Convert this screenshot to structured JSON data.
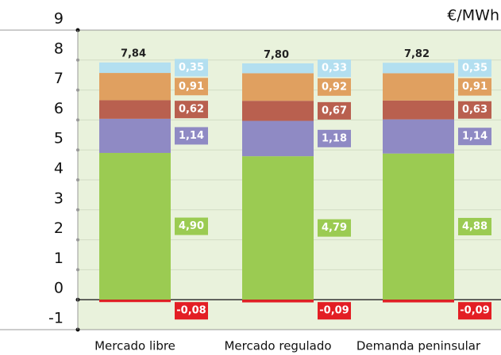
{
  "chart_data": {
    "type": "stacked_bar",
    "unit": "€/MWh",
    "categories": [
      "Mercado libre",
      "Mercado regulado",
      "Demanda peninsular"
    ],
    "series": [
      {
        "color": "#9bcb52",
        "values": [
          4.9,
          4.79,
          4.88
        ],
        "value_labels": [
          "4,90",
          "4,79",
          "4,88"
        ]
      },
      {
        "color": "#8f8ac4",
        "values": [
          1.14,
          1.18,
          1.14
        ],
        "value_labels": [
          "1,14",
          "1,18",
          "1,14"
        ]
      },
      {
        "color": "#b9604f",
        "values": [
          0.62,
          0.67,
          0.63
        ],
        "value_labels": [
          "0,62",
          "0,67",
          "0,63"
        ]
      },
      {
        "color": "#e0a060",
        "values": [
          0.91,
          0.92,
          0.91
        ],
        "value_labels": [
          "0,91",
          "0,92",
          "0,91"
        ]
      },
      {
        "color": "#b3dff0",
        "values": [
          0.35,
          0.33,
          0.35
        ],
        "value_labels": [
          "0,35",
          "0,33",
          "0,35"
        ]
      },
      {
        "color": "#e31e24",
        "values": [
          -0.08,
          -0.09,
          -0.09
        ],
        "value_labels": [
          "-0,08",
          "-0,09",
          "-0,09"
        ]
      }
    ],
    "totals": {
      "values": [
        7.84,
        7.8,
        7.82
      ],
      "value_labels": [
        "7,84",
        "7,80",
        "7,82"
      ]
    },
    "ylim": [
      -1,
      9
    ],
    "yticks": [
      -1,
      0,
      1,
      2,
      3,
      4,
      5,
      6,
      7,
      8,
      9
    ],
    "grid": true
  }
}
